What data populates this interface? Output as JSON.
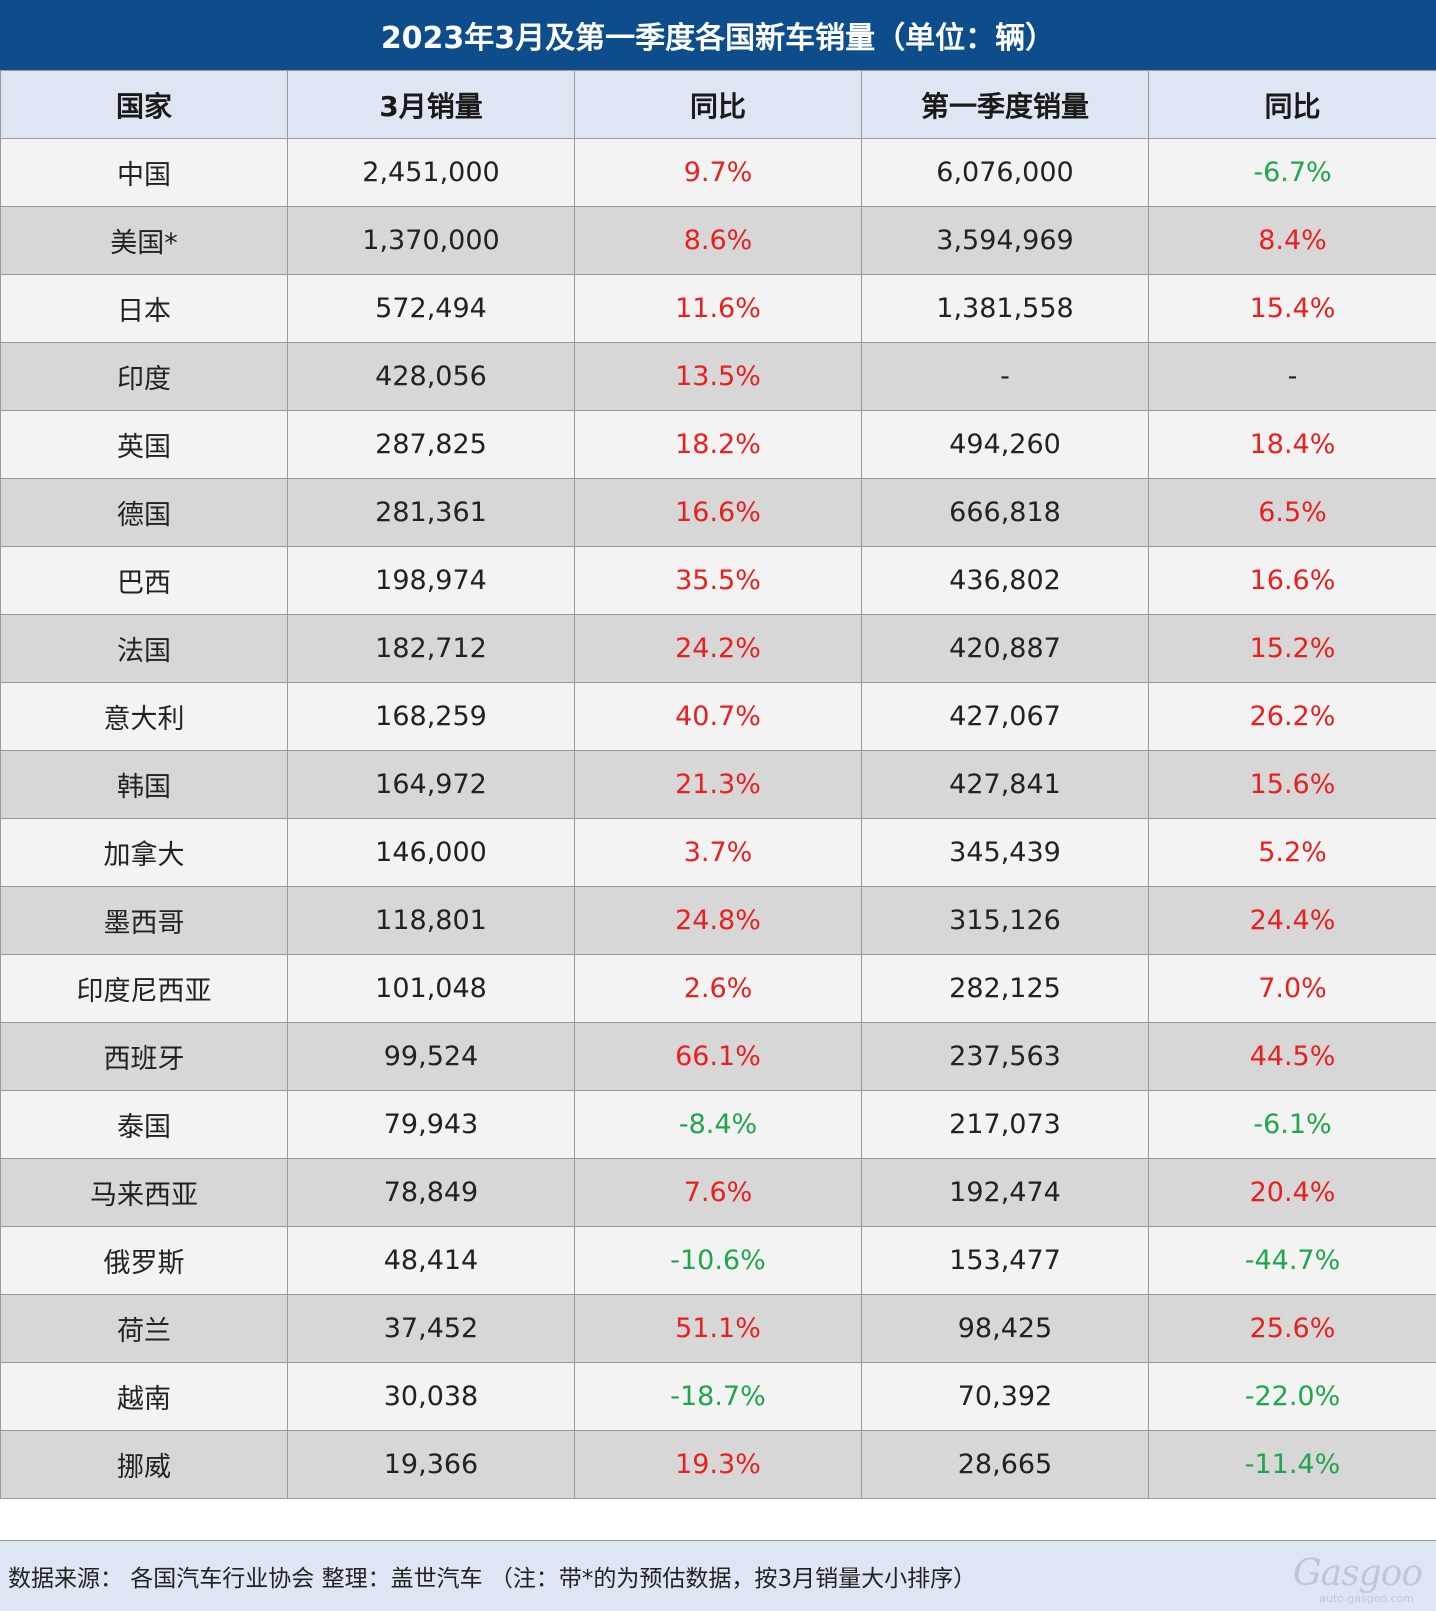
{
  "title": "2023年3月及第一季度各国新车销量（单位：辆）",
  "headers": [
    "国家",
    "3月销量",
    "同比",
    "第一季度销量",
    "同比"
  ],
  "rows": [
    {
      "country": "中国",
      "march": "2,451,000",
      "march_yoy": "9.7%",
      "q1": "6,076,000",
      "q1_yoy": "-6.7%"
    },
    {
      "country": "美国*",
      "march": "1,370,000",
      "march_yoy": "8.6%",
      "q1": "3,594,969",
      "q1_yoy": "8.4%"
    },
    {
      "country": "日本",
      "march": "572,494",
      "march_yoy": "11.6%",
      "q1": "1,381,558",
      "q1_yoy": "15.4%"
    },
    {
      "country": "印度",
      "march": "428,056",
      "march_yoy": "13.5%",
      "q1": "-",
      "q1_yoy": "-"
    },
    {
      "country": "英国",
      "march": "287,825",
      "march_yoy": "18.2%",
      "q1": "494,260",
      "q1_yoy": "18.4%"
    },
    {
      "country": "德国",
      "march": "281,361",
      "march_yoy": "16.6%",
      "q1": "666,818",
      "q1_yoy": "6.5%"
    },
    {
      "country": "巴西",
      "march": "198,974",
      "march_yoy": "35.5%",
      "q1": "436,802",
      "q1_yoy": "16.6%"
    },
    {
      "country": "法国",
      "march": "182,712",
      "march_yoy": "24.2%",
      "q1": "420,887",
      "q1_yoy": "15.2%"
    },
    {
      "country": "意大利",
      "march": "168,259",
      "march_yoy": "40.7%",
      "q1": "427,067",
      "q1_yoy": "26.2%"
    },
    {
      "country": "韩国",
      "march": "164,972",
      "march_yoy": "21.3%",
      "q1": "427,841",
      "q1_yoy": "15.6%"
    },
    {
      "country": "加拿大",
      "march": "146,000",
      "march_yoy": "3.7%",
      "q1": "345,439",
      "q1_yoy": "5.2%"
    },
    {
      "country": "墨西哥",
      "march": "118,801",
      "march_yoy": "24.8%",
      "q1": "315,126",
      "q1_yoy": "24.4%"
    },
    {
      "country": "印度尼西亚",
      "march": "101,048",
      "march_yoy": "2.6%",
      "q1": "282,125",
      "q1_yoy": "7.0%"
    },
    {
      "country": "西班牙",
      "march": "99,524",
      "march_yoy": "66.1%",
      "q1": "237,563",
      "q1_yoy": "44.5%"
    },
    {
      "country": "泰国",
      "march": "79,943",
      "march_yoy": "-8.4%",
      "q1": "217,073",
      "q1_yoy": "-6.1%"
    },
    {
      "country": "马来西亚",
      "march": "78,849",
      "march_yoy": "7.6%",
      "q1": "192,474",
      "q1_yoy": "20.4%"
    },
    {
      "country": "俄罗斯",
      "march": "48,414",
      "march_yoy": "-10.6%",
      "q1": "153,477",
      "q1_yoy": "-44.7%"
    },
    {
      "country": "荷兰",
      "march": "37,452",
      "march_yoy": "51.1%",
      "q1": "98,425",
      "q1_yoy": "25.6%"
    },
    {
      "country": "越南",
      "march": "30,038",
      "march_yoy": "-18.7%",
      "q1": "70,392",
      "q1_yoy": "-22.0%"
    },
    {
      "country": "挪威",
      "march": "19,366",
      "march_yoy": "19.3%",
      "q1": "28,665",
      "q1_yoy": "-11.4%"
    }
  ],
  "footer": {
    "note": "数据来源： 各国汽车行业协会 整理：盖世汽车 （注：带*的为预估数据，按3月销量大小排序）",
    "logo_text": "Gasgoo",
    "logo_sub": "auto.gasgoo.com"
  },
  "colors": {
    "title_bg": "#0e4d8c",
    "header_bg": "#dde6f2",
    "positive": "#e8201f",
    "negative": "#1fa64a"
  }
}
